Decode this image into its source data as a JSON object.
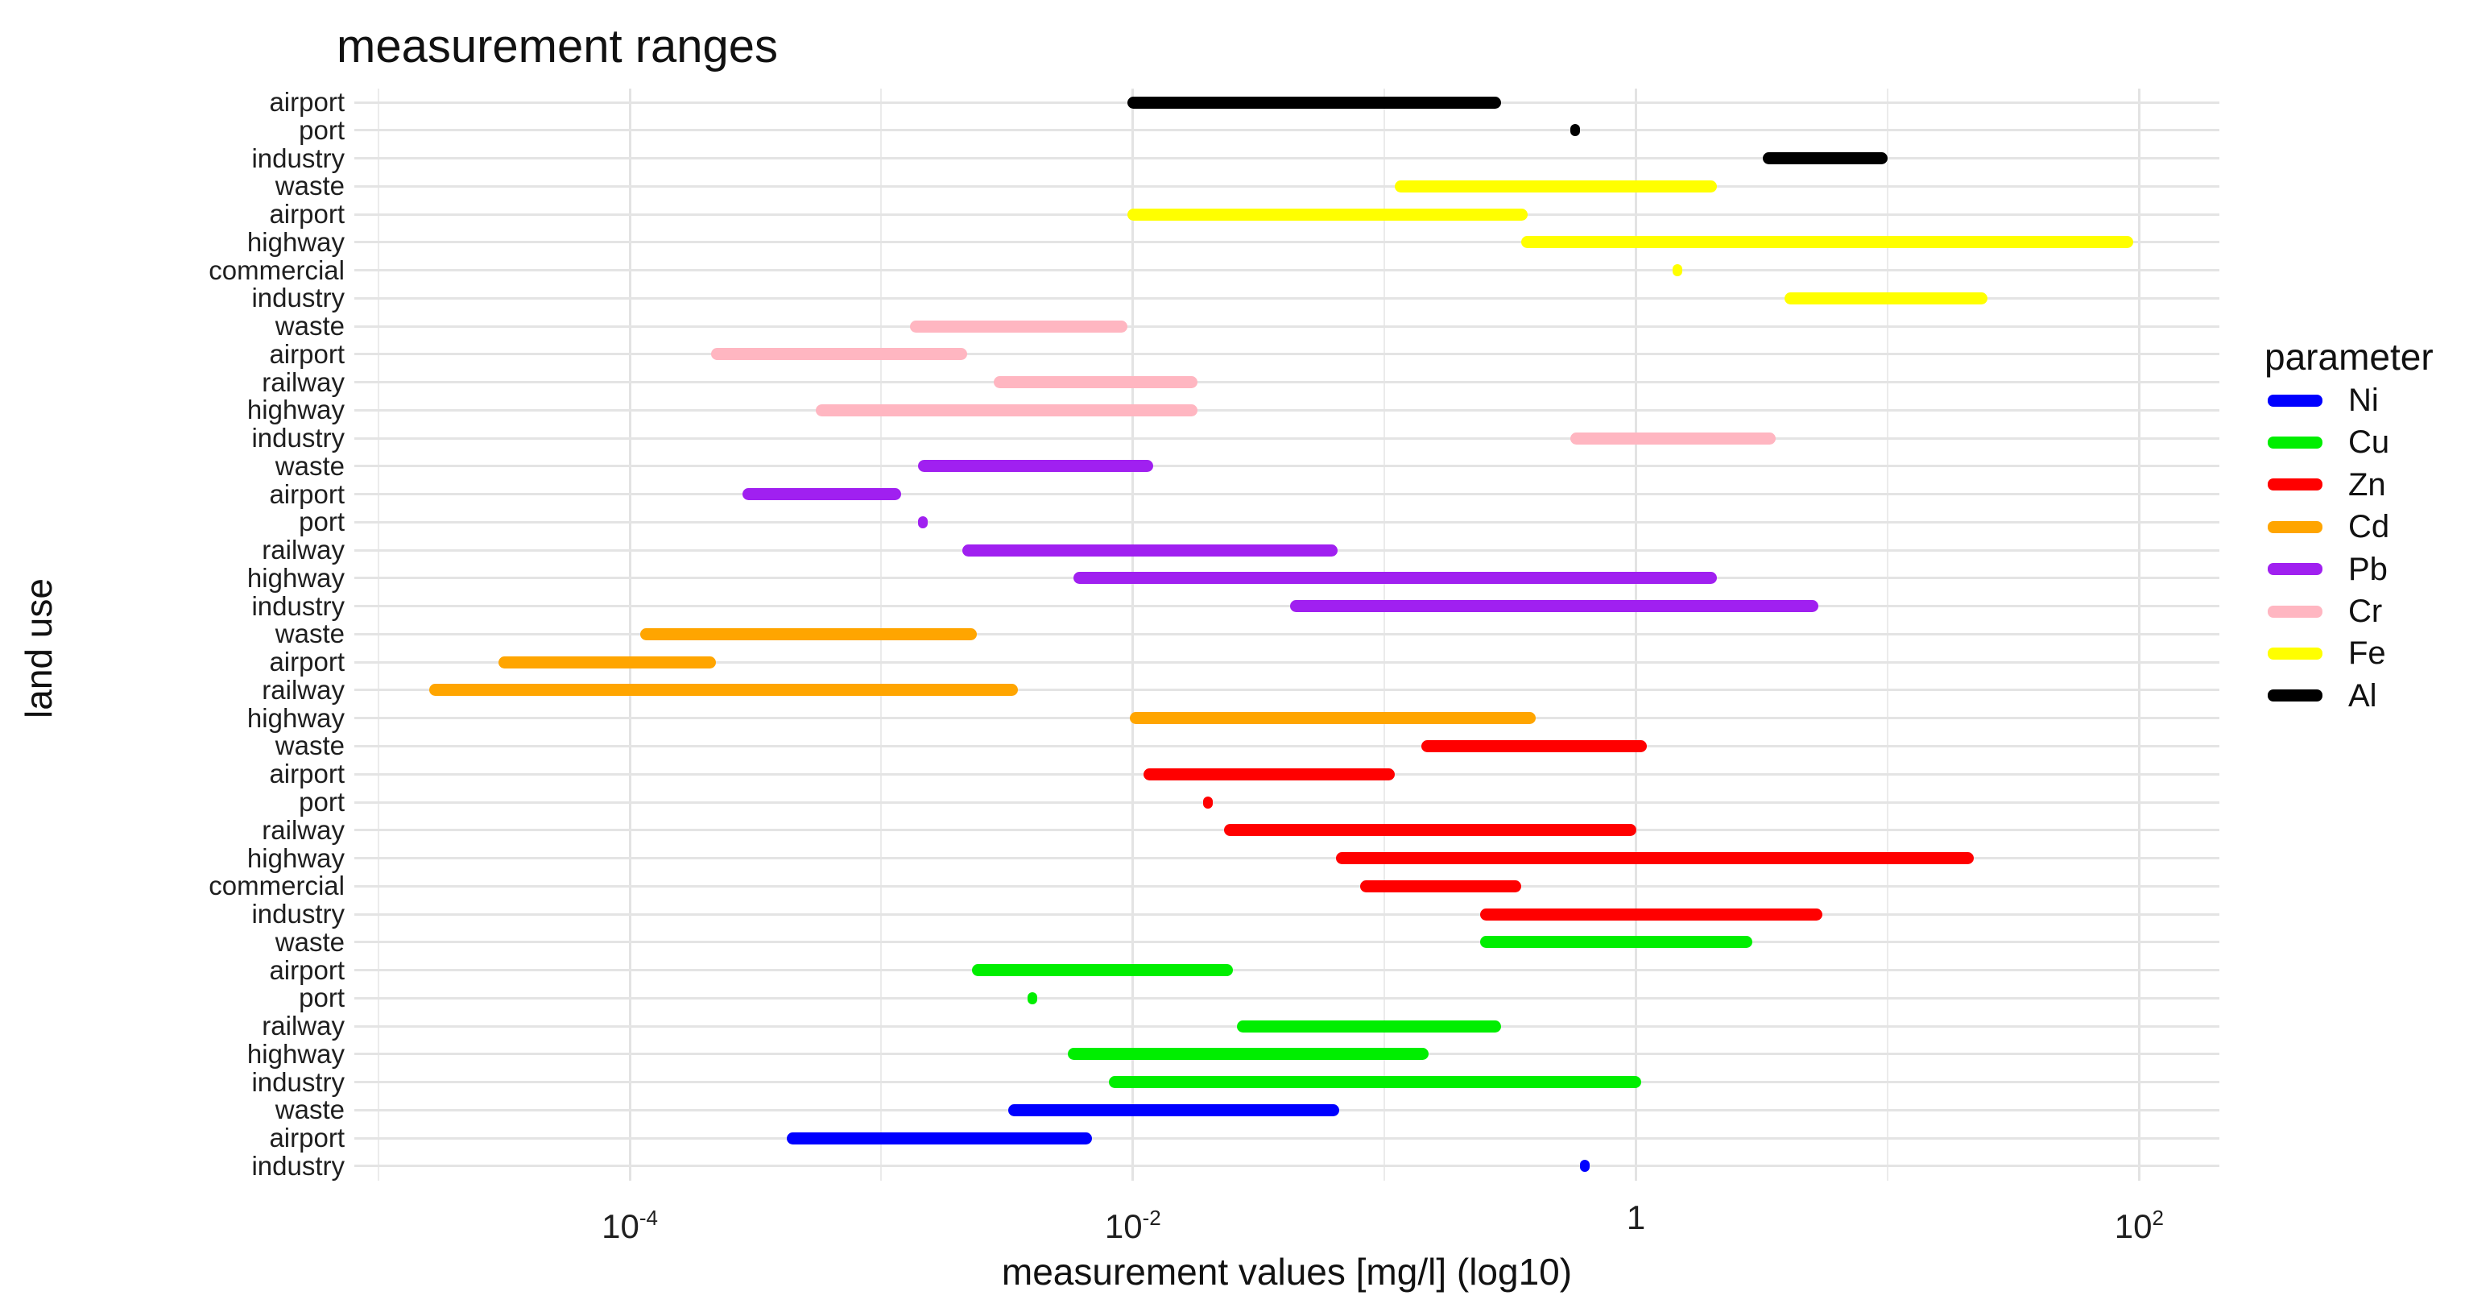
{
  "chart": {
    "title": "measurement ranges",
    "x_axis_label": "measurement values [mg/l] (log10)",
    "y_axis_label": "land use"
  },
  "legend": {
    "title": "parameter",
    "entries": [
      {
        "label": "Ni",
        "color": "#0000ff"
      },
      {
        "label": "Cu",
        "color": "#00ee00"
      },
      {
        "label": "Zn",
        "color": "#ff0000"
      },
      {
        "label": "Cd",
        "color": "#ffa500"
      },
      {
        "label": "Pb",
        "color": "#a020f0"
      },
      {
        "label": "Cr",
        "color": "#ffb6c1"
      },
      {
        "label": "Fe",
        "color": "#ffff00"
      },
      {
        "label": "Al",
        "color": "#000000"
      }
    ]
  },
  "chart_data": {
    "type": "bar",
    "subtype": "horizontal-range",
    "x_scale": "log10",
    "title": "measurement ranges",
    "xlabel": "measurement values [mg/l] (log10)",
    "ylabel": "land use",
    "legend_title": "parameter",
    "legend_position": "right",
    "grid": "on",
    "x_axis": {
      "log_min": -5.095,
      "log_max": 2.319,
      "gridline_logs": [
        -5,
        -4,
        -3,
        -2,
        -1,
        0,
        1,
        2
      ],
      "major_tick_logs": [
        -4,
        -2,
        0,
        2
      ],
      "ticks": [
        {
          "log": -4,
          "base": "10",
          "exp": "-4",
          "label": "10^-4"
        },
        {
          "log": -2,
          "base": "10",
          "exp": "-2",
          "label": "10^-2"
        },
        {
          "log": 0,
          "base": "1",
          "exp": "",
          "label": "1"
        },
        {
          "log": 2,
          "base": "10",
          "exp": "2",
          "label": "10^2"
        }
      ]
    },
    "palette": {
      "Ni": "#0000ff",
      "Cu": "#00ee00",
      "Zn": "#ff0000",
      "Cd": "#ffa500",
      "Pb": "#a020f0",
      "Cr": "#ffb6c1",
      "Fe": "#ffff00",
      "Al": "#000000"
    },
    "rows": [
      {
        "land_use": "airport",
        "parameter": "Al",
        "min": 0.0095,
        "max": 0.29
      },
      {
        "land_use": "port",
        "parameter": "Al",
        "min": 0.55,
        "max": 0.6
      },
      {
        "land_use": "industry",
        "parameter": "Al",
        "min": 3.2,
        "max": 10
      },
      {
        "land_use": "waste",
        "parameter": "Fe",
        "min": 0.11,
        "max": 2.1
      },
      {
        "land_use": "airport",
        "parameter": "Fe",
        "min": 0.0095,
        "max": 0.37
      },
      {
        "land_use": "highway",
        "parameter": "Fe",
        "min": 0.35,
        "max": 95
      },
      {
        "land_use": "commercial",
        "parameter": "Fe",
        "min": 1.4,
        "max": 1.5
      },
      {
        "land_use": "industry",
        "parameter": "Fe",
        "min": 3.9,
        "max": 25
      },
      {
        "land_use": "waste",
        "parameter": "Cr",
        "min": 0.0013,
        "max": 0.0095
      },
      {
        "land_use": "airport",
        "parameter": "Cr",
        "min": 0.00021,
        "max": 0.0022
      },
      {
        "land_use": "railway",
        "parameter": "Cr",
        "min": 0.0028,
        "max": 0.018
      },
      {
        "land_use": "highway",
        "parameter": "Cr",
        "min": 0.00055,
        "max": 0.018
      },
      {
        "land_use": "industry",
        "parameter": "Cr",
        "min": 0.55,
        "max": 3.6
      },
      {
        "land_use": "waste",
        "parameter": "Pb",
        "min": 0.0014,
        "max": 0.012
      },
      {
        "land_use": "airport",
        "parameter": "Pb",
        "min": 0.00028,
        "max": 0.0012
      },
      {
        "land_use": "port",
        "parameter": "Pb",
        "min": 0.0014,
        "max": 0.0015
      },
      {
        "land_use": "railway",
        "parameter": "Pb",
        "min": 0.0021,
        "max": 0.065
      },
      {
        "land_use": "highway",
        "parameter": "Pb",
        "min": 0.0058,
        "max": 2.1
      },
      {
        "land_use": "industry",
        "parameter": "Pb",
        "min": 0.042,
        "max": 5.3
      },
      {
        "land_use": "waste",
        "parameter": "Cd",
        "min": 0.00011,
        "max": 0.0024
      },
      {
        "land_use": "airport",
        "parameter": "Cd",
        "min": 3e-05,
        "max": 0.00022
      },
      {
        "land_use": "railway",
        "parameter": "Cd",
        "min": 1.6e-05,
        "max": 0.0035
      },
      {
        "land_use": "highway",
        "parameter": "Cd",
        "min": 0.0097,
        "max": 0.4
      },
      {
        "land_use": "waste",
        "parameter": "Zn",
        "min": 0.14,
        "max": 1.1
      },
      {
        "land_use": "airport",
        "parameter": "Zn",
        "min": 0.011,
        "max": 0.11
      },
      {
        "land_use": "port",
        "parameter": "Zn",
        "min": 0.019,
        "max": 0.02
      },
      {
        "land_use": "railway",
        "parameter": "Zn",
        "min": 0.023,
        "max": 1.0
      },
      {
        "land_use": "highway",
        "parameter": "Zn",
        "min": 0.064,
        "max": 22
      },
      {
        "land_use": "commercial",
        "parameter": "Zn",
        "min": 0.08,
        "max": 0.35
      },
      {
        "land_use": "industry",
        "parameter": "Zn",
        "min": 0.24,
        "max": 5.5
      },
      {
        "land_use": "waste",
        "parameter": "Cu",
        "min": 0.24,
        "max": 2.9
      },
      {
        "land_use": "airport",
        "parameter": "Cu",
        "min": 0.0023,
        "max": 0.025
      },
      {
        "land_use": "port",
        "parameter": "Cu",
        "min": 0.0038,
        "max": 0.004
      },
      {
        "land_use": "railway",
        "parameter": "Cu",
        "min": 0.026,
        "max": 0.29
      },
      {
        "land_use": "highway",
        "parameter": "Cu",
        "min": 0.0055,
        "max": 0.15
      },
      {
        "land_use": "industry",
        "parameter": "Cu",
        "min": 0.008,
        "max": 1.05
      },
      {
        "land_use": "waste",
        "parameter": "Ni",
        "min": 0.0032,
        "max": 0.066
      },
      {
        "land_use": "airport",
        "parameter": "Ni",
        "min": 0.00042,
        "max": 0.0069
      },
      {
        "land_use": "industry",
        "parameter": "Ni",
        "min": 0.6,
        "max": 0.65
      }
    ]
  }
}
